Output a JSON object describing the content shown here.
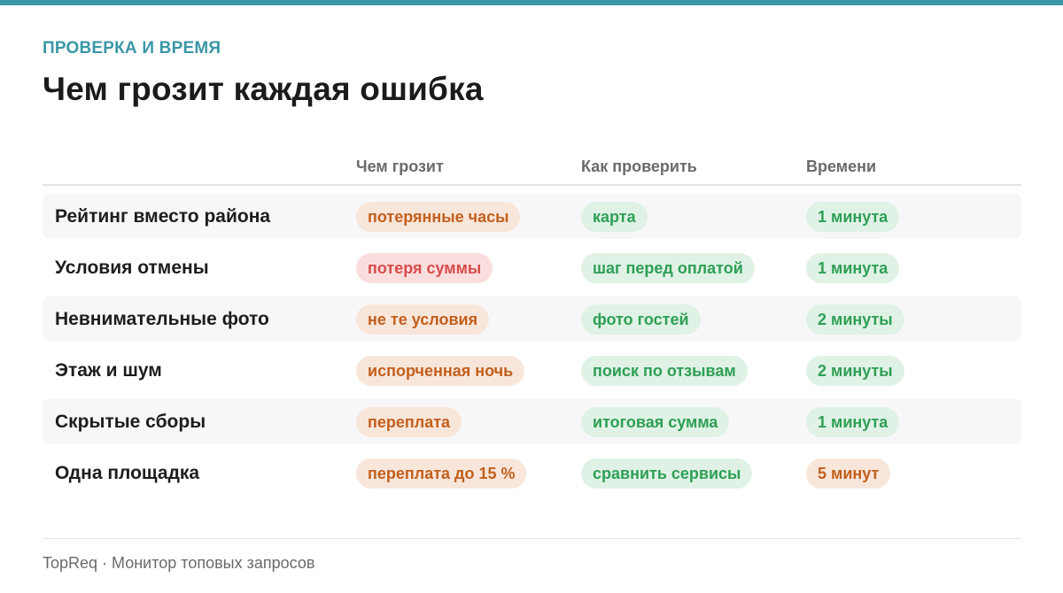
{
  "header": {
    "eyebrow": "ПРОВЕРКА И ВРЕМЯ",
    "title": "Чем грозит каждая ошибка"
  },
  "table": {
    "columns": [
      "",
      "Чем грозит",
      "Как проверить",
      "Времени"
    ],
    "rows": [
      {
        "label": "Рейтинг вместо района",
        "risk": "потерянные часы",
        "risk_tone": "warn",
        "check": "карта",
        "time": "1 минута",
        "time_tone": "ok"
      },
      {
        "label": "Условия отмены",
        "risk": "потеря суммы",
        "risk_tone": "danger",
        "check": "шаг перед оплатой",
        "time": "1 минута",
        "time_tone": "ok"
      },
      {
        "label": "Невнимательные фото",
        "risk": "не те условия",
        "risk_tone": "warn",
        "check": "фото гостей",
        "time": "2 минуты",
        "time_tone": "ok"
      },
      {
        "label": "Этаж и шум",
        "risk": "испорченная ночь",
        "risk_tone": "warn",
        "check": "поиск по отзывам",
        "time": "2 минуты",
        "time_tone": "ok"
      },
      {
        "label": "Скрытые сборы",
        "risk": "переплата",
        "risk_tone": "warn",
        "check": "итоговая сумма",
        "time": "1 минута",
        "time_tone": "ok"
      },
      {
        "label": "Одна площадка",
        "risk": "переплата до 15 %",
        "risk_tone": "warn",
        "check": "сравнить сервисы",
        "time": "5 минут",
        "time_tone": "warn"
      }
    ]
  },
  "colors": {
    "accent": "#3a97a6",
    "warn_bg": "#f9e6da",
    "warn_text": "#c25f1e",
    "danger_bg": "#fadede",
    "danger_text": "#d84b4b",
    "ok_bg": "#dff2e5",
    "ok_text": "#2e9f55"
  },
  "footer": {
    "text": "TopReq · Монитор топовых запросов"
  }
}
